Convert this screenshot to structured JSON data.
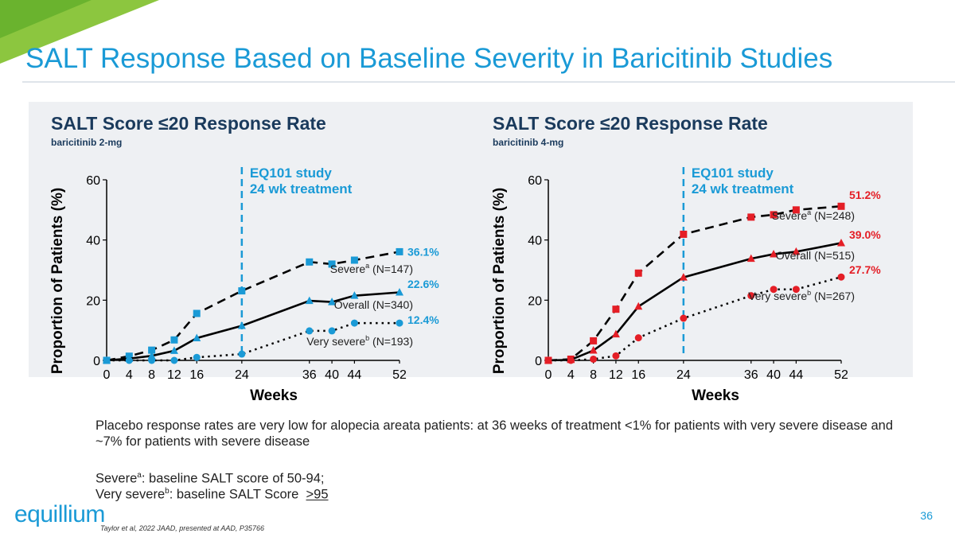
{
  "slide": {
    "title": "SALT Response Based on Baseline Severity in Baricitinib Studies",
    "page_number": "36",
    "citation": "Taylor et al, 2022 JAAD, presented at AAD, P35766",
    "logo_text": "equillium",
    "note_main": "Placebo response rates are very low for alopecia areata patients: at 36 weeks of treatment <1% for patients with very severe disease and ~7% for patients with severe disease",
    "fn_a_word": "Severe",
    "fn_a_sup": "a",
    "fn_a_rest": ": baseline SALT score of 50-94;",
    "fn_b_word": "Very severe",
    "fn_b_sup": "b",
    "fn_b_rest": ": baseline SALT Score  ",
    "fn_b_value": ">95",
    "accent_color": "#1a9ad6",
    "brand_green": "#8cc63f"
  },
  "chart_data": [
    {
      "type": "line",
      "title": "SALT Score ≤20 Response Rate",
      "subtitle": "baricitinib 2-mg",
      "xlabel": "Weeks",
      "ylabel": "Proportion of Patients (%)",
      "ylim": [
        0,
        60
      ],
      "xlim": [
        0,
        52
      ],
      "x_ticks": [
        0,
        4,
        8,
        12,
        16,
        24,
        36,
        40,
        44,
        52
      ],
      "y_ticks": [
        0,
        20,
        40,
        60
      ],
      "color": "#1a9ad6",
      "annotation": {
        "x": 24,
        "line1": "EQ101 study",
        "line2": "24 wk treatment"
      },
      "series": [
        {
          "name": "Severe",
          "sup": "a",
          "n": "(N=147)",
          "style": "dashed",
          "marker": "square",
          "end_label": "36.1%",
          "x": [
            0,
            4,
            8,
            12,
            16,
            24,
            36,
            40,
            44,
            52
          ],
          "values": [
            0,
            1.4,
            3.4,
            6.8,
            15.6,
            23.1,
            32.7,
            32.0,
            33.3,
            36.1
          ]
        },
        {
          "name": "Overall",
          "sup": "",
          "n": "(N=340)",
          "style": "solid",
          "marker": "triangle",
          "end_label": "22.6%",
          "x": [
            0,
            4,
            8,
            12,
            16,
            24,
            36,
            40,
            44,
            52
          ],
          "values": [
            0,
            0.6,
            1.5,
            3.2,
            7.4,
            11.5,
            19.8,
            19.4,
            21.5,
            22.6
          ]
        },
        {
          "name": "Very severe",
          "sup": "b",
          "n": "(N=193)",
          "style": "dotted",
          "marker": "circle",
          "end_label": "12.4%",
          "x": [
            0,
            4,
            8,
            12,
            16,
            24,
            36,
            40,
            44,
            52
          ],
          "values": [
            0,
            0,
            0,
            0,
            1.0,
            2.1,
            9.8,
            9.8,
            12.4,
            12.4
          ]
        }
      ]
    },
    {
      "type": "line",
      "title": "SALT Score ≤20 Response Rate",
      "subtitle": "baricitinib 4-mg",
      "xlabel": "Weeks",
      "ylabel": "Proportion of Patients (%)",
      "ylim": [
        0,
        60
      ],
      "xlim": [
        0,
        52
      ],
      "x_ticks": [
        0,
        4,
        8,
        12,
        16,
        24,
        36,
        40,
        44,
        52
      ],
      "y_ticks": [
        0,
        20,
        40,
        60
      ],
      "color": "#e41e26",
      "annotation": {
        "x": 24,
        "line1": "EQ101 study",
        "line2": "24 wk treatment"
      },
      "series": [
        {
          "name": "Severe",
          "sup": "a",
          "n": "(N=248)",
          "style": "dashed",
          "marker": "square",
          "end_label": "51.2%",
          "x": [
            0,
            4,
            8,
            12,
            16,
            24,
            36,
            40,
            44,
            52
          ],
          "values": [
            0,
            0.4,
            6.5,
            17.0,
            29.0,
            41.9,
            47.6,
            48.4,
            50.0,
            51.2
          ]
        },
        {
          "name": "Overall",
          "sup": "",
          "n": "(N=515)",
          "style": "solid",
          "marker": "triangle",
          "end_label": "39.0%",
          "x": [
            0,
            4,
            8,
            12,
            16,
            24,
            36,
            40,
            44,
            52
          ],
          "values": [
            0,
            0.2,
            3.3,
            8.7,
            17.9,
            27.6,
            33.8,
            35.3,
            36.1,
            39.0
          ]
        },
        {
          "name": "Very severe",
          "sup": "b",
          "n": "(N=267)",
          "style": "dotted",
          "marker": "circle",
          "end_label": "27.7%",
          "x": [
            0,
            4,
            8,
            12,
            16,
            24,
            36,
            40,
            44,
            52
          ],
          "values": [
            0,
            0,
            0.4,
            1.5,
            7.5,
            14.0,
            21.5,
            23.6,
            23.6,
            27.7
          ]
        }
      ]
    }
  ]
}
